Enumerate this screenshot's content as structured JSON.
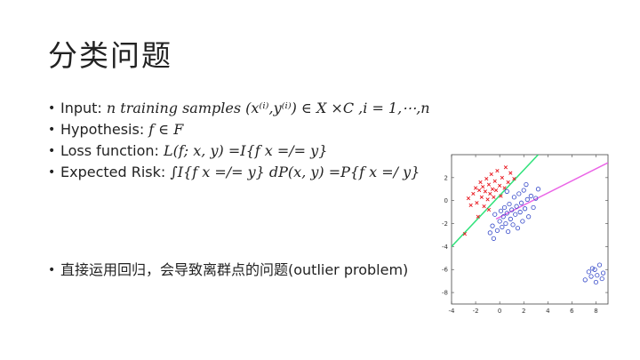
{
  "slide": {
    "title": "分类问题",
    "bullets": [
      {
        "prefix": "Input: ",
        "formula": "n training samples (x⁽ⁱ⁾,y⁽ⁱ⁾) ∈ X ×C ,i = 1,⋯,n"
      },
      {
        "prefix": "Hypothesis: ",
        "formula": "f ∈ F"
      },
      {
        "prefix": "Loss function: ",
        "formula": "L(f; x, y) =I{f x =/= y}"
      },
      {
        "prefix": "Expected Risk: ",
        "formula": "∫I{f x =/= y} dP(x, y) =P{f  x =/ y}"
      }
    ],
    "note": "直接运用回归，会导致离群点的问题(outlier problem)"
  },
  "chart_data": {
    "type": "scatter",
    "xlim": [
      -4,
      9
    ],
    "ylim": [
      -9,
      4
    ],
    "xticks": [
      "-4",
      "-2",
      "0",
      "2",
      "4",
      "6",
      "8"
    ],
    "yticks": [
      "2",
      "0",
      "-2",
      "-4",
      "-6",
      "-8"
    ],
    "grid": false,
    "colors": {
      "red": "#e8141c",
      "blue": "#3347c8",
      "green": "#2fe27a",
      "pink": "#ea63e6"
    },
    "series": [
      {
        "marker": "x",
        "color": "red",
        "points": [
          [
            -2.9,
            -2.9
          ],
          [
            -2.6,
            0.2
          ],
          [
            -2.4,
            -0.4
          ],
          [
            -2.2,
            0.6
          ],
          [
            -2.0,
            1.1
          ],
          [
            -1.9,
            -0.2
          ],
          [
            -1.7,
            0.9
          ],
          [
            -1.6,
            1.6
          ],
          [
            -1.5,
            0.3
          ],
          [
            -1.4,
            1.2
          ],
          [
            -1.3,
            -0.5
          ],
          [
            -1.2,
            0.8
          ],
          [
            -1.1,
            1.9
          ],
          [
            -1.0,
            0.1
          ],
          [
            -0.9,
            1.4
          ],
          [
            -0.8,
            0.6
          ],
          [
            -0.7,
            2.3
          ],
          [
            -0.6,
            1.0
          ],
          [
            -0.5,
            0.3
          ],
          [
            -0.4,
            1.7
          ],
          [
            -0.3,
            0.9
          ],
          [
            -0.2,
            2.6
          ],
          [
            0.0,
            1.3
          ],
          [
            0.1,
            0.4
          ],
          [
            0.2,
            2.0
          ],
          [
            0.4,
            1.1
          ],
          [
            0.5,
            2.9
          ],
          [
            0.7,
            1.6
          ],
          [
            0.9,
            2.4
          ],
          [
            1.2,
            1.9
          ],
          [
            -1.8,
            -1.4
          ],
          [
            -0.9,
            -0.8
          ]
        ]
      },
      {
        "marker": "o",
        "color": "blue",
        "points": [
          [
            -0.8,
            -2.8
          ],
          [
            -0.6,
            -2.2
          ],
          [
            -0.5,
            -3.3
          ],
          [
            -0.4,
            -1.2
          ],
          [
            -0.2,
            -2.6
          ],
          [
            0.0,
            -1.8
          ],
          [
            0.1,
            -0.9
          ],
          [
            0.2,
            -2.3
          ],
          [
            0.3,
            -1.4
          ],
          [
            0.4,
            -0.6
          ],
          [
            0.5,
            -2.0
          ],
          [
            0.6,
            -1.1
          ],
          [
            0.7,
            -2.7
          ],
          [
            0.8,
            -0.3
          ],
          [
            0.9,
            -1.6
          ],
          [
            1.0,
            -0.8
          ],
          [
            1.1,
            -2.1
          ],
          [
            1.2,
            0.3
          ],
          [
            1.3,
            -1.2
          ],
          [
            1.4,
            -0.5
          ],
          [
            1.5,
            -2.4
          ],
          [
            1.6,
            0.6
          ],
          [
            1.7,
            -1.0
          ],
          [
            1.8,
            -0.2
          ],
          [
            1.9,
            -1.8
          ],
          [
            2.0,
            0.9
          ],
          [
            2.1,
            -0.7
          ],
          [
            2.3,
            0.1
          ],
          [
            2.4,
            -1.4
          ],
          [
            2.6,
            0.4
          ],
          [
            2.8,
            -0.6
          ],
          [
            3.0,
            0.2
          ],
          [
            3.2,
            1.0
          ],
          [
            2.2,
            1.4
          ],
          [
            0.6,
            0.8
          ],
          [
            7.1,
            -6.9
          ],
          [
            7.4,
            -6.2
          ],
          [
            7.6,
            -6.6
          ],
          [
            7.9,
            -6.0
          ],
          [
            8.1,
            -6.5
          ],
          [
            8.3,
            -5.6
          ],
          [
            8.5,
            -6.8
          ],
          [
            8.0,
            -7.1
          ],
          [
            7.7,
            -5.9
          ],
          [
            8.6,
            -6.3
          ]
        ]
      }
    ],
    "lines": [
      {
        "color": "green",
        "from": [
          -4,
          -4
        ],
        "to": [
          3.2,
          4
        ]
      },
      {
        "color": "pink",
        "from": [
          -0.3,
          -1.6
        ],
        "to": [
          9,
          3.3
        ]
      }
    ]
  }
}
